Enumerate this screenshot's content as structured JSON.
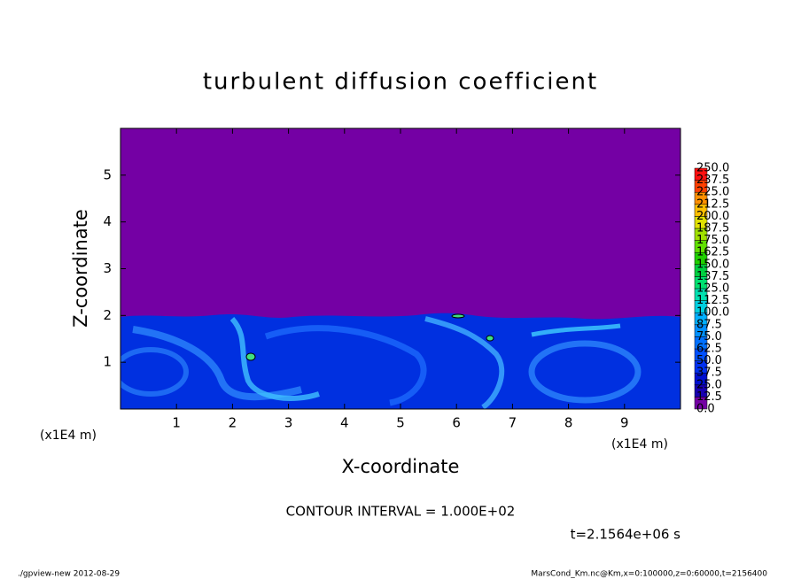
{
  "chart_data": {
    "type": "contour",
    "title": "turbulent diffusion coefficient",
    "x_label": "X-coordinate",
    "y_label": "Z-coordinate",
    "x_unit_label": "(x1E4 m)",
    "y_unit_label": "(x1E4 m)",
    "xlim": [
      0,
      10
    ],
    "ylim": [
      0,
      6
    ],
    "xticks": [
      1,
      2,
      3,
      4,
      5,
      6,
      7,
      8,
      9
    ],
    "yticks": [
      1,
      2,
      3,
      4,
      5
    ],
    "background_color": "#7400a4",
    "colorbar": {
      "ticks": [
        {
          "value": 0,
          "label": "0.0"
        },
        {
          "value": 12.5,
          "label": "12.5"
        },
        {
          "value": 25,
          "label": "25.0"
        },
        {
          "value": 37.5,
          "label": "37.5"
        },
        {
          "value": 50,
          "label": "50.0"
        },
        {
          "value": 62.5,
          "label": "62.5"
        },
        {
          "value": 75,
          "label": "75.0"
        },
        {
          "value": 87.5,
          "label": "87.5"
        },
        {
          "value": 100,
          "label": "100.0"
        },
        {
          "value": 112.5,
          "label": "112.5"
        },
        {
          "value": 125,
          "label": "125.0"
        },
        {
          "value": 137.5,
          "label": "137.5"
        },
        {
          "value": 150,
          "label": "150.0"
        },
        {
          "value": 162.5,
          "label": "162.5"
        },
        {
          "value": 175,
          "label": "175.0"
        },
        {
          "value": 187.5,
          "label": "187.5"
        },
        {
          "value": 200,
          "label": "200.0"
        },
        {
          "value": 212.5,
          "label": "212.5"
        },
        {
          "value": 225,
          "label": "225.0"
        },
        {
          "value": 237.5,
          "label": "237.5"
        },
        {
          "value": 250,
          "label": "250.0"
        }
      ],
      "colors": [
        "#7400a4",
        "#1800b0",
        "#0010d0",
        "#0030f0",
        "#0050ff",
        "#0070ff",
        "#0090ff",
        "#00b0ff",
        "#00d0e0",
        "#00e0b0",
        "#00e070",
        "#00d040",
        "#20d000",
        "#60e000",
        "#a0e000",
        "#e0e000",
        "#ffc000",
        "#ff9000",
        "#ff4000",
        "#ff1010"
      ]
    },
    "contour_interval_label": "CONTOUR INTERVAL = 1.000E+02",
    "time_label": "t=2.1564e+06 s",
    "footer_left": "./gpview-new  2012-08-29",
    "footer_right": "MarsCond_Km.nc@Km,x=0:100000,z=0:60000,t=2156400"
  }
}
